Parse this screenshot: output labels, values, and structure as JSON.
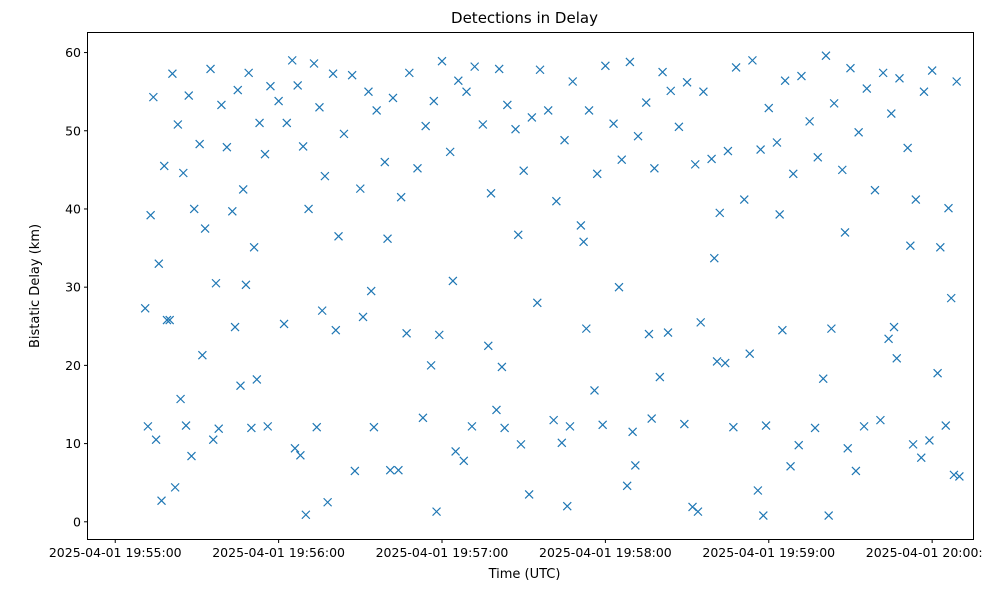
{
  "chart_data": {
    "type": "scatter",
    "title": "Detections in Delay",
    "xlabel": "Time (UTC)",
    "ylabel": "Bistatic Delay (km)",
    "marker": "x",
    "color": "#1f77b4",
    "grid": false,
    "x_unit": "time of day (HH:MM:SS UTC) on 2025-04-01",
    "xlim": [
      "2025-04-01 19:54:50",
      "2025-04-01 20:00:15"
    ],
    "ylim": [
      -2.2,
      62.5
    ],
    "x_ticks": [
      "19:55:00",
      "19:56:00",
      "19:57:00",
      "19:58:00",
      "19:59:00",
      "20:00:00"
    ],
    "x_tick_labels": [
      "2025-04-01 19:55:00",
      "2025-04-01 19:56:00",
      "2025-04-01 19:57:00",
      "2025-04-01 19:58:00",
      "2025-04-01 19:59:00",
      "2025-04-01 20:00:00"
    ],
    "y_ticks": [
      0,
      10,
      20,
      30,
      40,
      50,
      60
    ],
    "y_tick_labels": [
      "0",
      "10",
      "20",
      "30",
      "40",
      "50",
      "60"
    ],
    "x": [
      "19:55:11",
      "19:55:13",
      "19:55:14",
      "19:55:16",
      "19:55:18",
      "19:55:19",
      "19:55:21",
      "19:55:23",
      "19:55:25",
      "19:55:27",
      "19:55:29",
      "19:55:31",
      "19:55:33",
      "19:55:35",
      "19:55:37",
      "19:55:39",
      "19:55:41",
      "19:55:43",
      "19:55:45",
      "19:55:47",
      "19:55:49",
      "19:55:51",
      "19:55:53",
      "19:55:55",
      "19:55:57",
      "19:56:00",
      "19:56:03",
      "19:56:05",
      "19:56:07",
      "19:56:09",
      "19:56:11",
      "19:56:13",
      "19:56:15",
      "19:56:17",
      "19:56:20",
      "19:56:22",
      "19:56:24",
      "19:56:27",
      "19:56:30",
      "19:56:33",
      "19:56:36",
      "19:56:39",
      "19:56:42",
      "19:56:45",
      "19:56:48",
      "19:56:51",
      "19:56:54",
      "19:56:57",
      "19:57:00",
      "19:57:03",
      "19:57:06",
      "19:57:09",
      "19:57:12",
      "19:57:15",
      "19:57:18",
      "19:57:21",
      "19:57:24",
      "19:57:27",
      "19:57:30",
      "19:57:33",
      "19:57:36",
      "19:57:39",
      "19:57:42",
      "19:57:45",
      "19:57:48",
      "19:57:51",
      "19:57:54",
      "19:57:57",
      "19:58:00",
      "19:58:03",
      "19:58:06",
      "19:58:09",
      "19:58:12",
      "19:58:15",
      "19:58:18",
      "19:58:21",
      "19:58:24",
      "19:58:27",
      "19:58:30",
      "19:58:33",
      "19:58:36",
      "19:58:39",
      "19:58:42",
      "19:58:45",
      "19:58:48",
      "19:58:51",
      "19:58:54",
      "19:58:57",
      "19:59:00",
      "19:59:03",
      "19:59:06",
      "19:59:09",
      "19:59:12",
      "19:59:15",
      "19:59:18",
      "19:59:21",
      "19:59:24",
      "19:59:27",
      "19:59:30",
      "19:59:33",
      "19:59:36",
      "19:59:39",
      "19:59:42",
      "19:59:45",
      "19:59:48",
      "19:59:51",
      "19:59:54",
      "19:59:57",
      "20:00:00",
      "20:00:03",
      "20:00:06",
      "20:00:09",
      "19:55:12",
      "19:55:15",
      "19:55:20",
      "19:55:26",
      "19:55:32",
      "19:55:38",
      "19:55:44",
      "19:55:50",
      "19:55:56",
      "19:56:02",
      "19:56:08",
      "19:56:14",
      "19:56:21",
      "19:56:28",
      "19:56:35",
      "19:56:41",
      "19:56:47",
      "19:56:53",
      "19:56:59",
      "19:57:05",
      "19:57:11",
      "19:57:17",
      "19:57:23",
      "19:57:29",
      "19:57:35",
      "19:57:41",
      "19:57:47",
      "19:57:53",
      "19:57:59",
      "19:58:05",
      "19:58:11",
      "19:58:17",
      "19:58:23",
      "19:58:29",
      "19:58:35",
      "19:58:41",
      "19:58:47",
      "19:58:53",
      "19:58:59",
      "19:59:05",
      "19:59:11",
      "19:59:17",
      "19:59:23",
      "19:59:29",
      "19:59:35",
      "19:59:41",
      "19:59:47",
      "19:59:53",
      "19:59:59",
      "20:00:05",
      "20:00:10",
      "19:55:17",
      "19:55:24",
      "19:55:36",
      "19:55:48",
      "19:56:06",
      "19:56:18",
      "19:56:31",
      "19:56:44",
      "19:56:56",
      "19:57:08",
      "19:57:20",
      "19:57:32",
      "19:57:44",
      "19:57:56",
      "19:58:08",
      "19:58:20",
      "19:58:32",
      "19:58:44",
      "19:58:56",
      "19:59:08",
      "19:59:20",
      "19:59:32",
      "19:59:44",
      "19:59:56",
      "20:00:08",
      "19:55:22",
      "19:55:46",
      "19:56:10",
      "19:56:34",
      "19:56:58",
      "19:57:22",
      "19:57:46",
      "19:58:10",
      "19:58:34",
      "19:58:58",
      "19:59:22",
      "19:59:46",
      "20:00:02",
      "19:55:28",
      "19:55:52",
      "19:56:16",
      "19:56:40",
      "19:57:04",
      "19:57:28",
      "19:57:52",
      "19:58:16",
      "19:58:40",
      "19:59:04",
      "19:59:28",
      "19:59:52",
      "20:00:07"
    ],
    "y": [
      27.3,
      39.2,
      54.3,
      33.0,
      45.5,
      25.8,
      57.3,
      50.8,
      44.6,
      54.5,
      40.0,
      48.3,
      37.5,
      57.9,
      30.5,
      53.3,
      47.9,
      39.7,
      55.2,
      42.5,
      57.4,
      35.1,
      51.0,
      47.0,
      55.7,
      53.8,
      51.0,
      59.0,
      55.8,
      48.0,
      40.0,
      58.6,
      53.0,
      44.2,
      57.3,
      36.5,
      49.6,
      57.1,
      42.6,
      55.0,
      52.6,
      46.0,
      54.2,
      41.5,
      57.4,
      45.2,
      50.6,
      53.8,
      58.9,
      47.3,
      56.4,
      55.0,
      58.2,
      50.8,
      42.0,
      57.9,
      53.3,
      50.2,
      44.9,
      51.7,
      57.8,
      52.6,
      41.0,
      48.8,
      56.3,
      37.9,
      52.6,
      44.5,
      58.3,
      50.9,
      46.3,
      58.8,
      49.3,
      53.6,
      45.2,
      57.5,
      55.1,
      50.5,
      56.2,
      45.7,
      55.0,
      46.4,
      39.5,
      47.4,
      58.1,
      41.2,
      59.0,
      47.6,
      52.9,
      48.5,
      56.4,
      44.5,
      57.0,
      51.2,
      46.6,
      59.6,
      53.5,
      45.0,
      58.0,
      49.8,
      55.4,
      42.4,
      57.4,
      52.2,
      56.7,
      47.8,
      41.2,
      55.0,
      57.7,
      35.1,
      40.1,
      56.3,
      12.2,
      10.5,
      25.8,
      12.3,
      21.3,
      11.9,
      24.9,
      12.0,
      12.2,
      25.3,
      8.5,
      12.1,
      24.5,
      6.5,
      12.1,
      6.6,
      24.1,
      13.3,
      23.9,
      9.0,
      12.2,
      22.5,
      12.0,
      9.9,
      28.0,
      13.0,
      12.2,
      24.7,
      12.4,
      30.0,
      7.2,
      13.2,
      24.2,
      12.5,
      25.5,
      20.5,
      12.1,
      21.5,
      12.3,
      24.5,
      9.8,
      12.0,
      24.7,
      9.4,
      12.2,
      13.0,
      20.9,
      9.9,
      10.4,
      12.3,
      5.8,
      2.7,
      15.7,
      10.5,
      30.3,
      9.4,
      2.5,
      26.2,
      6.6,
      20.0,
      7.8,
      14.3,
      3.5,
      10.1,
      16.8,
      4.6,
      18.5,
      1.9,
      20.3,
      4.0,
      7.1,
      18.3,
      6.5,
      23.4,
      8.2,
      6.0,
      4.4,
      17.4,
      0.9,
      29.5,
      1.3,
      19.8,
      2.0,
      11.5,
      1.3,
      0.8,
      0.8,
      24.9,
      19.0,
      8.4,
      18.2,
      27.0,
      36.2,
      30.8,
      36.7,
      35.8,
      24.0,
      33.7,
      39.3,
      37.0,
      35.3,
      28.6
    ]
  }
}
